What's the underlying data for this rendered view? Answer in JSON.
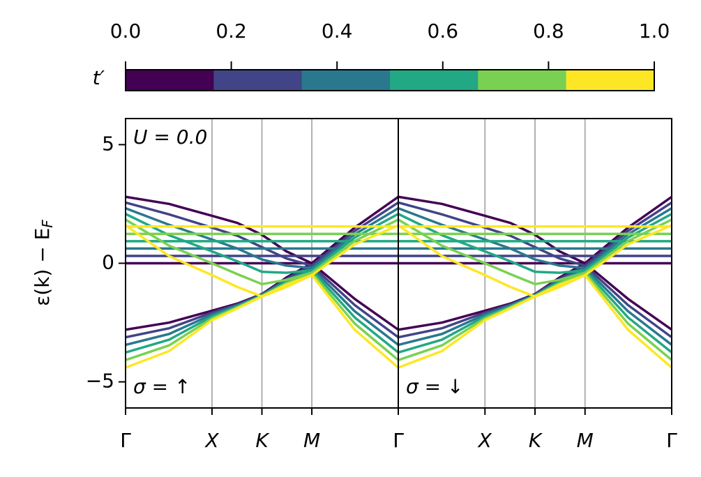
{
  "chart_data": [
    {
      "type": "colorbar",
      "label": "t′",
      "colors": [
        "#440154",
        "#414487",
        "#2a788e",
        "#22a884",
        "#7ad151",
        "#fde725"
      ],
      "xlim": [
        0,
        1
      ],
      "xticks": [
        {
          "value": 0,
          "label": "0.0"
        },
        0.2,
        0.4,
        0.6,
        0.8,
        {
          "value": 1,
          "label": "1.0"
        }
      ]
    },
    {
      "type": "line",
      "annotations": [
        "U = 0.0",
        "σ = ↑"
      ],
      "ylabel": "ε(k) − E",
      "ylabel_sub": "F",
      "x": [
        0,
        0.16,
        0.317,
        0.41,
        0.5,
        0.59,
        0.683,
        0.84,
        1
      ],
      "xlim": [
        0,
        1
      ],
      "xticks": [
        {
          "value": 0,
          "label": "Γ"
        },
        {
          "value": 0.317,
          "label": "X"
        },
        {
          "value": 0.5,
          "label": "K"
        },
        {
          "value": 0.683,
          "label": "M"
        },
        {
          "value": 1,
          "label": "Γ"
        }
      ],
      "ylim": [
        -6.1,
        6.1
      ],
      "yticks": [
        {
          "value": -5,
          "label": "−5"
        },
        0,
        5
      ],
      "grid": true,
      "series": [
        {
          "color": "#440154",
          "values": [
            2.8,
            2.5,
            2.0,
            1.7,
            1.2,
            0.5,
            0.0,
            1.5,
            2.8
          ]
        },
        {
          "color": "#440154",
          "values": [
            0,
            0,
            0,
            0,
            0,
            0,
            0,
            0,
            0
          ]
        },
        {
          "color": "#440154",
          "values": [
            -2.8,
            -2.5,
            -2.0,
            -1.7,
            -1.3,
            -0.6,
            0.0,
            -1.5,
            -2.8
          ]
        },
        {
          "color": "#414487",
          "values": [
            2.56,
            2.06,
            1.5,
            1.16,
            0.68,
            0.2,
            -0.1,
            1.36,
            2.56
          ]
        },
        {
          "color": "#414487",
          "values": [
            0.31,
            0.31,
            0.31,
            0.31,
            0.31,
            0.31,
            0.31,
            0.31,
            0.31
          ]
        },
        {
          "color": "#414487",
          "values": [
            -3.12,
            -2.74,
            -2.08,
            -1.74,
            -1.32,
            -0.66,
            -0.1,
            -1.76,
            -3.12
          ]
        },
        {
          "color": "#2a788e",
          "values": [
            2.32,
            1.62,
            1.0,
            0.62,
            0.16,
            -0.1,
            -0.2,
            1.22,
            2.32
          ]
        },
        {
          "color": "#2a788e",
          "values": [
            0.62,
            0.62,
            0.62,
            0.62,
            0.62,
            0.62,
            0.62,
            0.62,
            0.62
          ]
        },
        {
          "color": "#2a788e",
          "values": [
            -3.44,
            -2.98,
            -2.16,
            -1.78,
            -1.34,
            -0.72,
            -0.2,
            -2.02,
            -3.44
          ]
        },
        {
          "color": "#22a884",
          "values": [
            2.08,
            1.18,
            0.5,
            0.08,
            -0.36,
            -0.4,
            -0.3,
            1.08,
            2.08
          ]
        },
        {
          "color": "#22a884",
          "values": [
            0.93,
            0.93,
            0.93,
            0.93,
            0.93,
            0.93,
            0.93,
            0.93,
            0.93
          ]
        },
        {
          "color": "#22a884",
          "values": [
            -3.76,
            -3.22,
            -2.24,
            -1.82,
            -1.36,
            -0.78,
            -0.3,
            -2.28,
            -3.76
          ]
        },
        {
          "color": "#7ad151",
          "values": [
            1.84,
            0.74,
            0.0,
            -0.46,
            -0.88,
            -0.7,
            -0.4,
            0.94,
            1.84
          ]
        },
        {
          "color": "#7ad151",
          "values": [
            1.24,
            1.24,
            1.24,
            1.24,
            1.24,
            1.24,
            1.24,
            1.24,
            1.24
          ]
        },
        {
          "color": "#7ad151",
          "values": [
            -4.08,
            -3.46,
            -2.32,
            -1.86,
            -1.38,
            -0.84,
            -0.4,
            -2.54,
            -4.08
          ]
        },
        {
          "color": "#fde725",
          "values": [
            1.6,
            0.3,
            -0.5,
            -1.0,
            -1.4,
            -1.0,
            -0.5,
            0.8,
            1.6
          ]
        },
        {
          "color": "#fde725",
          "values": [
            1.55,
            1.55,
            1.55,
            1.55,
            1.55,
            1.55,
            1.55,
            1.55,
            1.55
          ]
        },
        {
          "color": "#fde725",
          "values": [
            -4.4,
            -3.7,
            -2.4,
            -1.9,
            -1.4,
            -0.9,
            -0.5,
            -2.8,
            -4.4
          ]
        }
      ]
    },
    {
      "type": "line",
      "annotations": [
        "σ = ↓"
      ],
      "x": [
        0,
        0.16,
        0.317,
        0.41,
        0.5,
        0.59,
        0.683,
        0.84,
        1
      ],
      "xlim": [
        0,
        1
      ],
      "xticks": [
        {
          "value": 0,
          "label": "Γ"
        },
        {
          "value": 0.317,
          "label": "X"
        },
        {
          "value": 0.5,
          "label": "K"
        },
        {
          "value": 0.683,
          "label": "M"
        },
        {
          "value": 1,
          "label": "Γ"
        }
      ],
      "ylim": [
        -6.1,
        6.1
      ],
      "grid": true,
      "series": [
        {
          "color": "#440154",
          "values": [
            2.8,
            2.5,
            2.0,
            1.7,
            1.2,
            0.5,
            0.0,
            1.5,
            2.8
          ]
        },
        {
          "color": "#440154",
          "values": [
            0,
            0,
            0,
            0,
            0,
            0,
            0,
            0,
            0
          ]
        },
        {
          "color": "#440154",
          "values": [
            -2.8,
            -2.5,
            -2.0,
            -1.7,
            -1.3,
            -0.6,
            0.0,
            -1.5,
            -2.8
          ]
        },
        {
          "color": "#414487",
          "values": [
            2.56,
            2.06,
            1.5,
            1.16,
            0.68,
            0.2,
            -0.1,
            1.36,
            2.56
          ]
        },
        {
          "color": "#414487",
          "values": [
            0.31,
            0.31,
            0.31,
            0.31,
            0.31,
            0.31,
            0.31,
            0.31,
            0.31
          ]
        },
        {
          "color": "#414487",
          "values": [
            -3.12,
            -2.74,
            -2.08,
            -1.74,
            -1.32,
            -0.66,
            -0.1,
            -1.76,
            -3.12
          ]
        },
        {
          "color": "#2a788e",
          "values": [
            2.32,
            1.62,
            1.0,
            0.62,
            0.16,
            -0.1,
            -0.2,
            1.22,
            2.32
          ]
        },
        {
          "color": "#2a788e",
          "values": [
            0.62,
            0.62,
            0.62,
            0.62,
            0.62,
            0.62,
            0.62,
            0.62,
            0.62
          ]
        },
        {
          "color": "#2a788e",
          "values": [
            -3.44,
            -2.98,
            -2.16,
            -1.78,
            -1.34,
            -0.72,
            -0.2,
            -2.02,
            -3.44
          ]
        },
        {
          "color": "#22a884",
          "values": [
            2.08,
            1.18,
            0.5,
            0.08,
            -0.36,
            -0.4,
            -0.3,
            1.08,
            2.08
          ]
        },
        {
          "color": "#22a884",
          "values": [
            0.93,
            0.93,
            0.93,
            0.93,
            0.93,
            0.93,
            0.93,
            0.93,
            0.93
          ]
        },
        {
          "color": "#22a884",
          "values": [
            -3.76,
            -3.22,
            -2.24,
            -1.82,
            -1.36,
            -0.78,
            -0.3,
            -2.28,
            -3.76
          ]
        },
        {
          "color": "#7ad151",
          "values": [
            1.84,
            0.74,
            0.0,
            -0.46,
            -0.88,
            -0.7,
            -0.4,
            0.94,
            1.84
          ]
        },
        {
          "color": "#7ad151",
          "values": [
            1.24,
            1.24,
            1.24,
            1.24,
            1.24,
            1.24,
            1.24,
            1.24,
            1.24
          ]
        },
        {
          "color": "#7ad151",
          "values": [
            -4.08,
            -3.46,
            -2.32,
            -1.86,
            -1.38,
            -0.84,
            -0.4,
            -2.54,
            -4.08
          ]
        },
        {
          "color": "#fde725",
          "values": [
            1.6,
            0.3,
            -0.5,
            -1.0,
            -1.4,
            -1.0,
            -0.5,
            0.8,
            1.6
          ]
        },
        {
          "color": "#fde725",
          "values": [
            1.55,
            1.55,
            1.55,
            1.55,
            1.55,
            1.55,
            1.55,
            1.55,
            1.55
          ]
        },
        {
          "color": "#fde725",
          "values": [
            -4.4,
            -3.7,
            -2.4,
            -1.9,
            -1.4,
            -0.9,
            -0.5,
            -2.8,
            -4.4
          ]
        }
      ]
    }
  ]
}
